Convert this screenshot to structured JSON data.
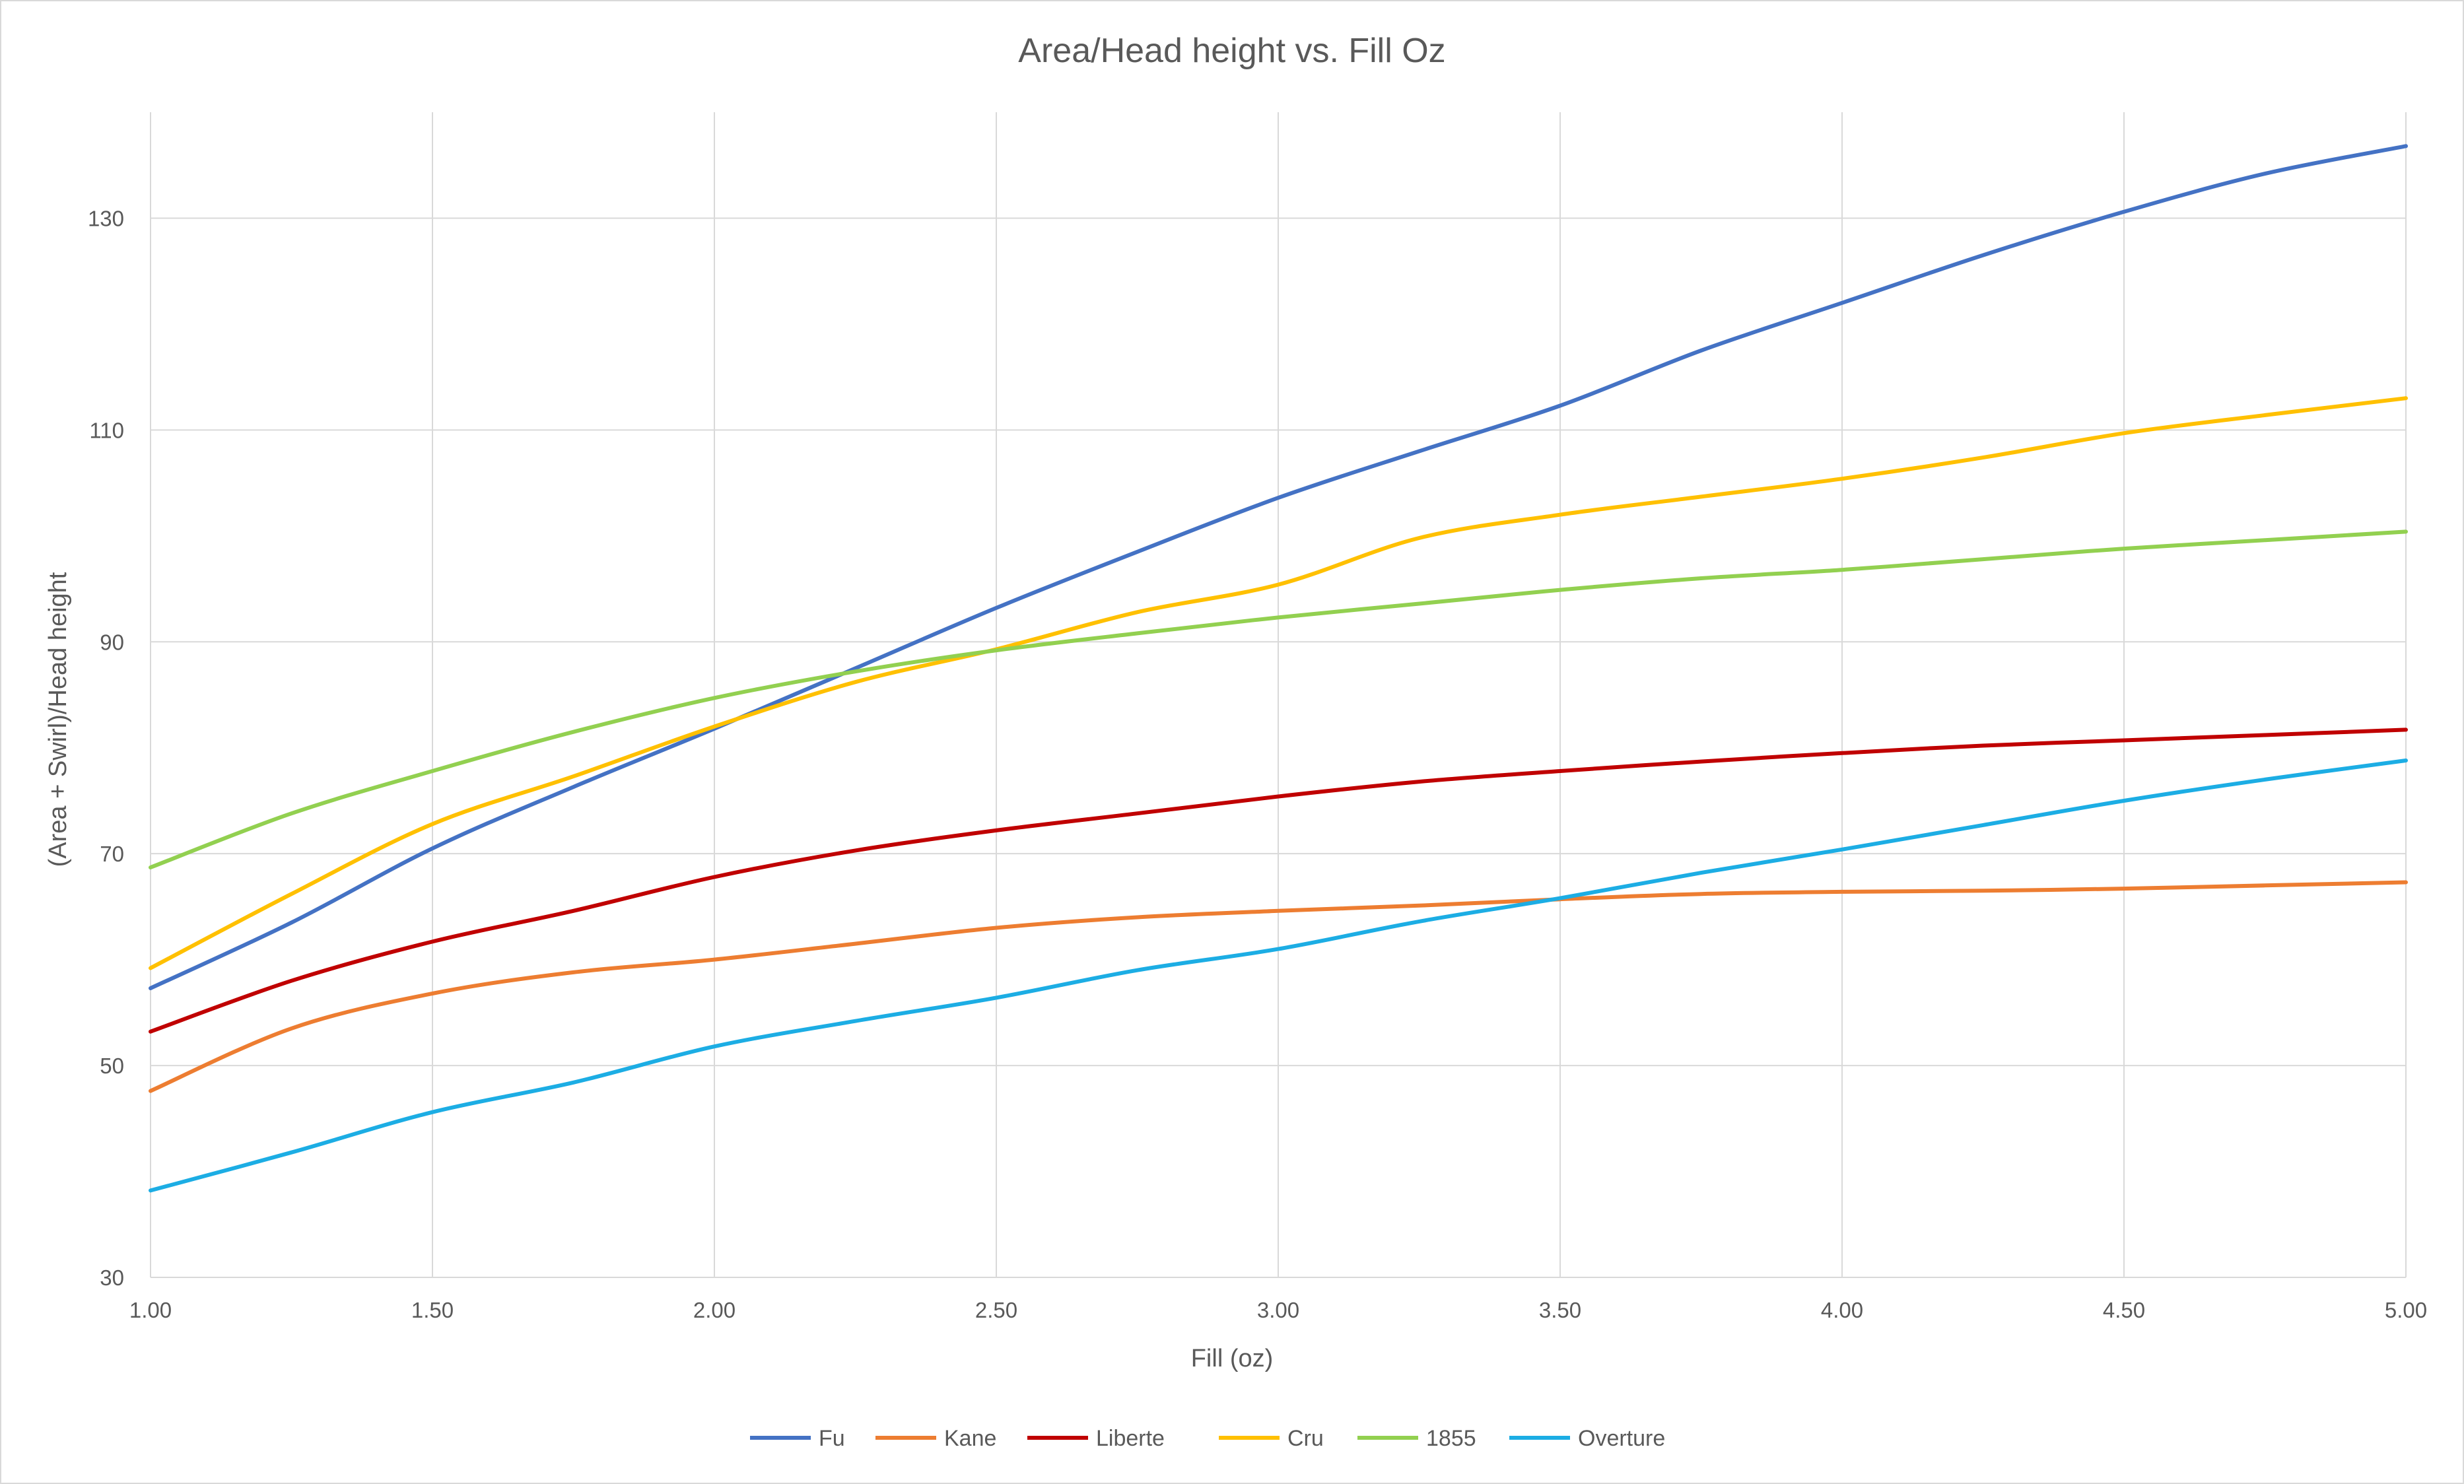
{
  "chart_data": {
    "type": "line",
    "title": "Area/Head height vs. Fill Oz",
    "xlabel": "Fill (oz)",
    "ylabel": "(Area + Swirl)/Head height",
    "xlim": [
      1.0,
      5.0
    ],
    "ylim": [
      30,
      140
    ],
    "x_ticks": [
      "1.00",
      "1.50",
      "2.00",
      "2.50",
      "3.00",
      "3.50",
      "4.00",
      "4.50",
      "5.00"
    ],
    "y_ticks": [
      "30",
      "50",
      "70",
      "90",
      "110",
      "130"
    ],
    "grid": true,
    "legend_position": "bottom",
    "x": [
      1.0,
      1.25,
      1.5,
      1.75,
      2.0,
      2.25,
      2.5,
      2.75,
      3.0,
      3.25,
      3.5,
      3.75,
      4.0,
      4.25,
      4.5,
      4.75,
      5.0
    ],
    "series": [
      {
        "name": "Fu",
        "color": "#4472C4",
        "values": [
          57.3,
          63.5,
          70.5,
          76.3,
          81.8,
          87.5,
          93.2,
          98.5,
          103.6,
          108.0,
          112.3,
          117.5,
          122.0,
          126.5,
          130.6,
          134.2,
          136.8
        ]
      },
      {
        "name": "Kane",
        "color": "#ED7D31",
        "values": [
          47.6,
          53.5,
          56.8,
          58.8,
          60.0,
          61.5,
          63.0,
          64.0,
          64.6,
          65.1,
          65.7,
          66.2,
          66.4,
          66.5,
          66.7,
          67.0,
          67.3
        ]
      },
      {
        "name": "Liberte",
        "color": "#C00000",
        "values": [
          53.2,
          58.0,
          61.7,
          64.6,
          67.8,
          70.3,
          72.2,
          73.8,
          75.4,
          76.8,
          77.8,
          78.7,
          79.5,
          80.2,
          80.7,
          81.2,
          81.7
        ]
      },
      {
        "name": "Cru",
        "color": "#FFC000",
        "values": [
          59.2,
          66.2,
          72.8,
          77.3,
          82.0,
          86.2,
          89.3,
          92.8,
          95.4,
          99.8,
          102.0,
          103.7,
          105.4,
          107.4,
          109.7,
          111.4,
          113.0
        ]
      },
      {
        "name": "1855",
        "color": "#92D050",
        "values": [
          68.7,
          73.8,
          77.8,
          81.5,
          84.7,
          87.2,
          89.2,
          90.8,
          92.3,
          93.6,
          94.9,
          96.0,
          96.8,
          97.8,
          98.8,
          99.6,
          100.4
        ]
      },
      {
        "name": "Overture",
        "color": "#1CADE4",
        "values": [
          38.2,
          41.8,
          45.6,
          48.4,
          51.8,
          54.2,
          56.4,
          59.0,
          61.0,
          63.6,
          65.8,
          68.2,
          70.4,
          72.7,
          75.0,
          77.0,
          78.8
        ]
      }
    ]
  }
}
